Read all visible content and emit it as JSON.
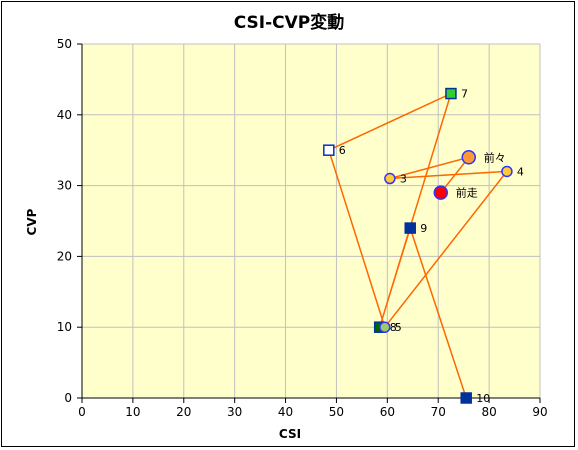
{
  "chart_data": {
    "type": "scatter",
    "title": "CSI-CVP変動",
    "xlabel": "CSI",
    "ylabel": "CVP",
    "xlim": [
      0,
      90
    ],
    "ylim": [
      0,
      50
    ],
    "x_ticks": [
      0,
      10,
      20,
      30,
      40,
      50,
      60,
      70,
      80,
      90
    ],
    "y_ticks": [
      0,
      10,
      20,
      30,
      40,
      50
    ],
    "grid": true,
    "colors": {
      "plot_background": "#ffffcc",
      "grid": "#c0c0c0",
      "line": "#ff6600",
      "navy": "#003399",
      "green": "#33cc33",
      "orange": "#ff9933",
      "yellow": "#ffcc33",
      "red": "#ff0000",
      "blue_border": "#3333ff"
    },
    "path_order": [
      "10",
      "9",
      "8",
      "7",
      "6",
      "5",
      "4",
      "3",
      "前々",
      "前走"
    ],
    "points": [
      {
        "label": "10",
        "x": 75.5,
        "y": 0,
        "marker": "square",
        "fill": "#003399",
        "stroke": "#003399"
      },
      {
        "label": "9",
        "x": 64.5,
        "y": 24,
        "marker": "square",
        "fill": "#003399",
        "stroke": "#003399"
      },
      {
        "label": "8",
        "x": 58.5,
        "y": 10,
        "marker": "square",
        "fill": "#006600",
        "stroke": "#003399"
      },
      {
        "label": "7",
        "x": 72.5,
        "y": 43,
        "marker": "square",
        "fill": "#33cc33",
        "stroke": "#003399"
      },
      {
        "label": "6",
        "x": 48.5,
        "y": 35,
        "marker": "square",
        "fill": "#ffffff",
        "stroke": "#0033cc"
      },
      {
        "label": "5",
        "x": 59.5,
        "y": 10,
        "marker": "circle",
        "fill": "#99cc66",
        "stroke": "#3333ff"
      },
      {
        "label": "4",
        "x": 83.5,
        "y": 32,
        "marker": "circle",
        "fill": "#ffcc33",
        "stroke": "#3333ff"
      },
      {
        "label": "3",
        "x": 60.5,
        "y": 31,
        "marker": "circle",
        "fill": "#ffcc33",
        "stroke": "#3333ff"
      },
      {
        "label": "前々",
        "x": 76.0,
        "y": 34,
        "marker": "circle-large",
        "fill": "#ff9933",
        "stroke": "#3333ff"
      },
      {
        "label": "前走",
        "x": 70.5,
        "y": 29,
        "marker": "circle-large",
        "fill": "#ff0000",
        "stroke": "#3333ff"
      }
    ]
  }
}
